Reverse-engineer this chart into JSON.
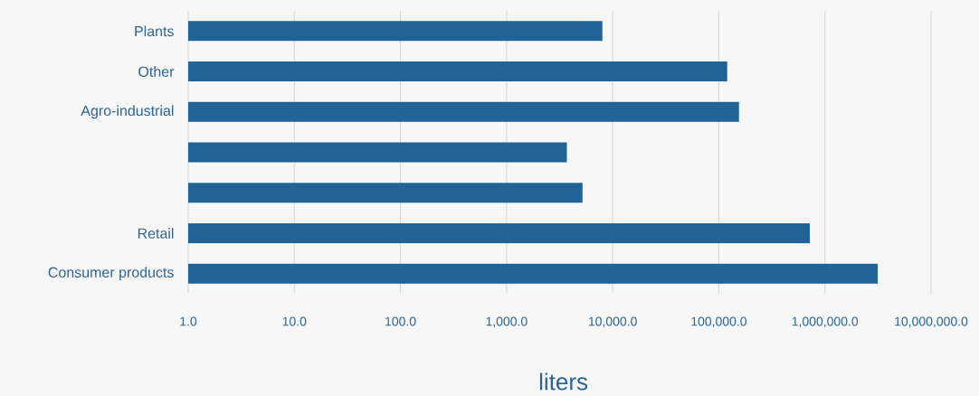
{
  "chart_data": {
    "type": "bar",
    "orientation": "horizontal",
    "log": "x",
    "grid": "x",
    "xlabel": "liters",
    "color": "#1f6397",
    "categories": [
      "Plants",
      "Other",
      "Agro-industrial",
      null,
      null,
      "Retail",
      "Consumer products"
    ],
    "values": [
      8000,
      120000,
      155000,
      3700,
      5200,
      720000,
      3150000
    ],
    "xlim": [
      1,
      10000000
    ],
    "xticks": [
      {
        "value": 1,
        "label": "1.0"
      },
      {
        "value": 10,
        "label": "10.0"
      },
      {
        "value": 100,
        "label": "100.0"
      },
      {
        "value": 1000,
        "label": "1,000.0"
      },
      {
        "value": 10000,
        "label": "10,000.0"
      },
      {
        "value": 100000,
        "label": "100,000.0"
      },
      {
        "value": 1000000,
        "label": "1,000,000.0"
      },
      {
        "value": 10000000,
        "label": "10,000,000.0"
      }
    ]
  }
}
